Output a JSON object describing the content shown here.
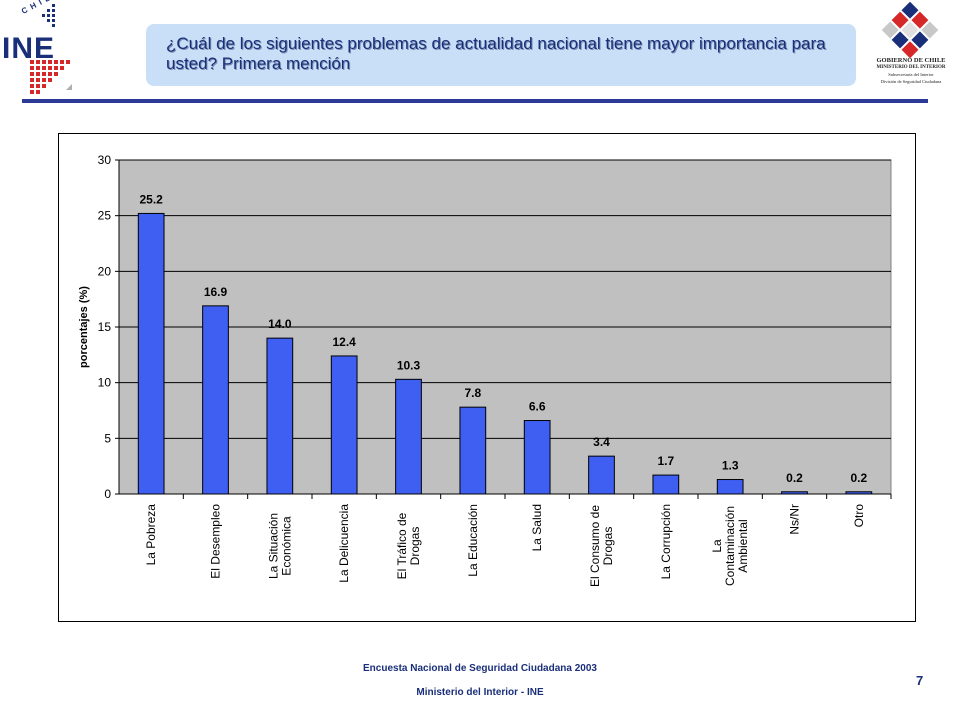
{
  "header": {
    "title": "¿Cuál de los siguientes problemas de actualidad nacional tiene mayor importancia para usted? Primera mención",
    "ine_logo_small": "CHILE",
    "ine_logo_word": "INE",
    "gov_logo_line1": "GOBIERNO DE CHILE",
    "gov_logo_line2": "MINISTERIO DEL INTERIOR",
    "gov_logo_line3": "Subsecretaría del Interior",
    "gov_logo_line4": "División de Seguridad Ciudadana"
  },
  "colors": {
    "bar": "#3f5ff2",
    "plot_bg": "#c0c0c0",
    "title_box": "#c9dff7",
    "accent": "#2a3a96"
  },
  "chart_data": {
    "type": "bar",
    "title": "",
    "xlabel": "",
    "ylabel": "porcentajes (%)",
    "ylim": [
      0,
      30
    ],
    "yticks": [
      0,
      5,
      10,
      15,
      20,
      25,
      30
    ],
    "grid": true,
    "legend": "none",
    "categories": [
      [
        "La Pobreza"
      ],
      [
        "El Desempleo"
      ],
      [
        "La Situación",
        "Económica"
      ],
      [
        "La Delicuencia"
      ],
      [
        "El Tráfico de",
        "Drogas"
      ],
      [
        "La Educación"
      ],
      [
        "La Salud"
      ],
      [
        "El Consumo de",
        "Drogas"
      ],
      [
        "La Corrupción"
      ],
      [
        "La",
        "Contaminación",
        "Ambiental"
      ],
      [
        "Ns/Nr"
      ],
      [
        "Otro"
      ]
    ],
    "values": [
      25.2,
      16.9,
      14.0,
      12.4,
      10.3,
      7.8,
      6.6,
      3.4,
      1.7,
      1.3,
      0.2,
      0.2
    ],
    "value_labels": [
      "25.2",
      "16.9",
      "14.0",
      "12.4",
      "10.3",
      "7.8",
      "6.6",
      "3.4",
      "1.7",
      "1.3",
      "0.2",
      "0.2"
    ]
  },
  "footer": {
    "line1": "Encuesta Nacional de Seguridad Ciudadana 2003",
    "line2": "Ministerio del Interior - INE",
    "page": "7"
  }
}
